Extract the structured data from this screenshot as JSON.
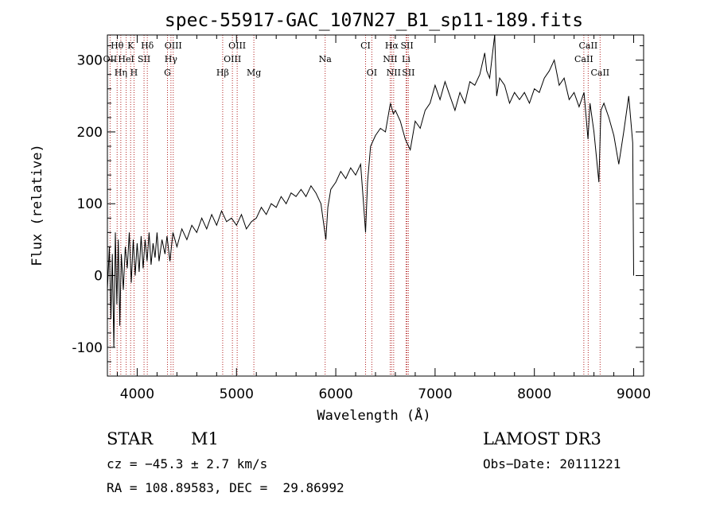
{
  "chart_data": {
    "type": "line",
    "title": "spec-55917-GAC_107N27_B1_sp11-189.fits",
    "xlabel": "Wavelength (Å)",
    "ylabel": "Flux (relative)",
    "xlim": [
      3700,
      9100
    ],
    "ylim": [
      -140,
      335
    ],
    "x_ticks": [
      4000,
      5000,
      6000,
      7000,
      8000,
      9000
    ],
    "y_ticks": [
      -100,
      0,
      100,
      200,
      300
    ],
    "grid": false,
    "line_color": "#000000",
    "marker_color": "#b22222",
    "series": [
      {
        "name": "flux",
        "points": [
          [
            3700,
            -20
          ],
          [
            3720,
            40
          ],
          [
            3735,
            -60
          ],
          [
            3750,
            30
          ],
          [
            3765,
            -100
          ],
          [
            3780,
            60
          ],
          [
            3795,
            -40
          ],
          [
            3810,
            50
          ],
          [
            3825,
            -70
          ],
          [
            3840,
            30
          ],
          [
            3860,
            -20
          ],
          [
            3880,
            40
          ],
          [
            3900,
            10
          ],
          [
            3920,
            60
          ],
          [
            3940,
            -10
          ],
          [
            3960,
            50
          ],
          [
            3980,
            0
          ],
          [
            4000,
            45
          ],
          [
            4020,
            5
          ],
          [
            4040,
            55
          ],
          [
            4060,
            10
          ],
          [
            4080,
            50
          ],
          [
            4100,
            20
          ],
          [
            4120,
            60
          ],
          [
            4140,
            15
          ],
          [
            4160,
            45
          ],
          [
            4180,
            25
          ],
          [
            4200,
            60
          ],
          [
            4220,
            20
          ],
          [
            4250,
            50
          ],
          [
            4280,
            30
          ],
          [
            4300,
            55
          ],
          [
            4330,
            20
          ],
          [
            4360,
            60
          ],
          [
            4400,
            40
          ],
          [
            4450,
            65
          ],
          [
            4500,
            50
          ],
          [
            4550,
            70
          ],
          [
            4600,
            60
          ],
          [
            4650,
            80
          ],
          [
            4700,
            65
          ],
          [
            4750,
            85
          ],
          [
            4800,
            70
          ],
          [
            4850,
            90
          ],
          [
            4900,
            75
          ],
          [
            4950,
            80
          ],
          [
            5000,
            70
          ],
          [
            5050,
            85
          ],
          [
            5100,
            65
          ],
          [
            5150,
            75
          ],
          [
            5200,
            80
          ],
          [
            5250,
            95
          ],
          [
            5300,
            85
          ],
          [
            5350,
            100
          ],
          [
            5400,
            95
          ],
          [
            5450,
            110
          ],
          [
            5500,
            100
          ],
          [
            5550,
            115
          ],
          [
            5600,
            110
          ],
          [
            5650,
            120
          ],
          [
            5700,
            110
          ],
          [
            5750,
            125
          ],
          [
            5800,
            115
          ],
          [
            5850,
            100
          ],
          [
            5900,
            50
          ],
          [
            5920,
            95
          ],
          [
            5950,
            120
          ],
          [
            6000,
            130
          ],
          [
            6050,
            145
          ],
          [
            6100,
            135
          ],
          [
            6150,
            150
          ],
          [
            6200,
            140
          ],
          [
            6250,
            155
          ],
          [
            6280,
            100
          ],
          [
            6300,
            60
          ],
          [
            6320,
            130
          ],
          [
            6350,
            180
          ],
          [
            6400,
            195
          ],
          [
            6450,
            205
          ],
          [
            6500,
            200
          ],
          [
            6550,
            240
          ],
          [
            6580,
            225
          ],
          [
            6600,
            230
          ],
          [
            6650,
            215
          ],
          [
            6700,
            190
          ],
          [
            6750,
            175
          ],
          [
            6800,
            215
          ],
          [
            6850,
            205
          ],
          [
            6900,
            230
          ],
          [
            6950,
            240
          ],
          [
            7000,
            265
          ],
          [
            7050,
            245
          ],
          [
            7100,
            270
          ],
          [
            7150,
            250
          ],
          [
            7200,
            230
          ],
          [
            7250,
            255
          ],
          [
            7300,
            240
          ],
          [
            7350,
            270
          ],
          [
            7400,
            265
          ],
          [
            7450,
            280
          ],
          [
            7500,
            310
          ],
          [
            7520,
            285
          ],
          [
            7550,
            275
          ],
          [
            7600,
            350
          ],
          [
            7620,
            250
          ],
          [
            7650,
            275
          ],
          [
            7700,
            265
          ],
          [
            7750,
            240
          ],
          [
            7800,
            255
          ],
          [
            7850,
            245
          ],
          [
            7900,
            255
          ],
          [
            7950,
            240
          ],
          [
            8000,
            260
          ],
          [
            8050,
            255
          ],
          [
            8100,
            275
          ],
          [
            8150,
            285
          ],
          [
            8200,
            300
          ],
          [
            8250,
            265
          ],
          [
            8300,
            275
          ],
          [
            8350,
            245
          ],
          [
            8400,
            255
          ],
          [
            8450,
            235
          ],
          [
            8500,
            255
          ],
          [
            8540,
            190
          ],
          [
            8560,
            240
          ],
          [
            8600,
            200
          ],
          [
            8650,
            130
          ],
          [
            8670,
            230
          ],
          [
            8700,
            240
          ],
          [
            8750,
            220
          ],
          [
            8800,
            195
          ],
          [
            8850,
            155
          ],
          [
            8900,
            200
          ],
          [
            8950,
            250
          ],
          [
            8990,
            185
          ],
          [
            9000,
            0
          ]
        ]
      }
    ],
    "line_markers": [
      {
        "name": "Hθ",
        "wavelength": 3798,
        "label_row": 1
      },
      {
        "name": "K",
        "wavelength": 3934,
        "label_row": 1
      },
      {
        "name": "Hδ",
        "wavelength": 4102,
        "label_row": 1
      },
      {
        "name": "OIII",
        "wavelength": 4363,
        "label_row": 1
      },
      {
        "name": "OIII",
        "wavelength": 5007,
        "label_row": 1
      },
      {
        "name": "CI",
        "wavelength": 6300,
        "label_row": 1
      },
      {
        "name": "Hα",
        "wavelength": 6563,
        "label_row": 1
      },
      {
        "name": "SII",
        "wavelength": 6717,
        "label_row": 1
      },
      {
        "name": "CaII",
        "wavelength": 8542,
        "label_row": 1
      },
      {
        "name": "OII",
        "wavelength": 3727,
        "label_row": 2
      },
      {
        "name": "HeI",
        "wavelength": 3889,
        "label_row": 2
      },
      {
        "name": "SII",
        "wavelength": 4069,
        "label_row": 2
      },
      {
        "name": "Hγ",
        "wavelength": 4340,
        "label_row": 2
      },
      {
        "name": "OIII",
        "wavelength": 4959,
        "label_row": 2
      },
      {
        "name": "Na",
        "wavelength": 5893,
        "label_row": 2
      },
      {
        "name": "NII",
        "wavelength": 6548,
        "label_row": 2
      },
      {
        "name": "Li",
        "wavelength": 6708,
        "label_row": 2
      },
      {
        "name": "CaII",
        "wavelength": 8498,
        "label_row": 2
      },
      {
        "name": "Hη",
        "wavelength": 3835,
        "label_row": 3
      },
      {
        "name": "H",
        "wavelength": 3968,
        "label_row": 3
      },
      {
        "name": "G",
        "wavelength": 4305,
        "label_row": 3
      },
      {
        "name": "Hβ",
        "wavelength": 4861,
        "label_row": 3
      },
      {
        "name": "Mg",
        "wavelength": 5175,
        "label_row": 3
      },
      {
        "name": "OI",
        "wavelength": 6363,
        "label_row": 3
      },
      {
        "name": "NII",
        "wavelength": 6583,
        "label_row": 3
      },
      {
        "name": "SII",
        "wavelength": 6731,
        "label_row": 3
      },
      {
        "name": "CaII",
        "wavelength": 8662,
        "label_row": 3
      }
    ]
  },
  "info": {
    "object_class": "STAR",
    "subclass": "M1",
    "survey": "LAMOST DR3",
    "redshift_line": "cz = −45.3 ± 2.7 km/s",
    "obs_date_line": "Obs−Date: 20111221",
    "coords_line": "RA = 108.89583, DEC =  29.86992"
  }
}
